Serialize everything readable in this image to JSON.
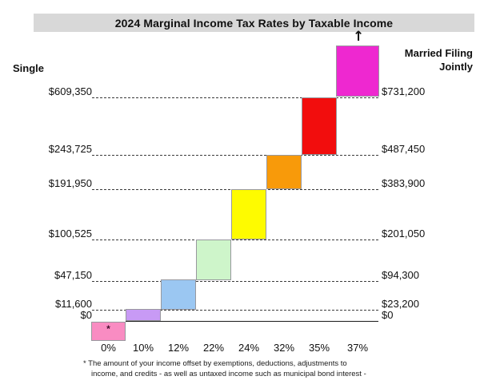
{
  "title": "2024 Marginal Income Tax Rates by Taxable Income",
  "left_header": "Single",
  "right_header": "Married Filing Jointly",
  "footnote": {
    "marker": "*",
    "line1": "The amount of your income offset by exemptions, deductions, adjustments to",
    "line2": "income, and credits - as well as untaxed income such as municipal bond interest -"
  },
  "open_ended_arrow_glyph": "↑",
  "chart_data": {
    "type": "bar",
    "subtype": "marginal-tax-bracket-staircase",
    "title": "2024 Marginal Income Tax Rates by Taxable Income",
    "x_tick_labels": [
      "0%",
      "10%",
      "12%",
      "22%",
      "24%",
      "32%",
      "35%",
      "37%"
    ],
    "left_axis_label": "Single",
    "right_axis_label": "Married Filing Jointly",
    "y_scale": "taxable income thresholds (non-linear step scale)",
    "grid": "horizontal dashed threshold lines, solid line at $0",
    "gridlines": [
      {
        "single": "$609,350",
        "married_joint": "$731,200",
        "single_value": 609350,
        "married_value": 731200,
        "style": "dashed"
      },
      {
        "single": "$243,725",
        "married_joint": "$487,450",
        "single_value": 243725,
        "married_value": 487450,
        "style": "dashed"
      },
      {
        "single": "$191,950",
        "married_joint": "$383,900",
        "single_value": 191950,
        "married_value": 383900,
        "style": "dashed"
      },
      {
        "single": "$100,525",
        "married_joint": "$201,050",
        "single_value": 100525,
        "married_value": 201050,
        "style": "dashed"
      },
      {
        "single": "$47,150",
        "married_joint": "$94,300",
        "single_value": 47150,
        "married_value": 94300,
        "style": "dashed"
      },
      {
        "single": "$11,600",
        "married_joint": "$23,200",
        "single_value": 11600,
        "married_value": 23200,
        "style": "dashed"
      },
      {
        "single": "$0",
        "married_joint": "$0",
        "single_value": 0,
        "married_value": 0,
        "style": "solid"
      }
    ],
    "brackets": [
      {
        "rate": "0%",
        "single_range": [
          null,
          0
        ],
        "married_range": [
          null,
          0
        ],
        "color": "#F98CC2",
        "note": "*"
      },
      {
        "rate": "10%",
        "single_range": [
          0,
          11600
        ],
        "married_range": [
          0,
          23200
        ],
        "color": "#C89AF5"
      },
      {
        "rate": "12%",
        "single_range": [
          11600,
          47150
        ],
        "married_range": [
          23200,
          94300
        ],
        "color": "#9BC7F2"
      },
      {
        "rate": "22%",
        "single_range": [
          47150,
          100525
        ],
        "married_range": [
          94300,
          201050
        ],
        "color": "#CEF5CA"
      },
      {
        "rate": "24%",
        "single_range": [
          100525,
          191950
        ],
        "married_range": [
          201050,
          383900
        ],
        "color": "#FEFB00"
      },
      {
        "rate": "32%",
        "single_range": [
          191950,
          243725
        ],
        "married_range": [
          383900,
          487450
        ],
        "color": "#F89A0A"
      },
      {
        "rate": "35%",
        "single_range": [
          243725,
          609350
        ],
        "married_range": [
          487450,
          731200
        ],
        "color": "#F20D0D"
      },
      {
        "rate": "37%",
        "single_range": [
          609350,
          null
        ],
        "married_range": [
          731200,
          null
        ],
        "color": "#EE28D0",
        "open_ended": true
      }
    ],
    "box_border_color": "#98989E",
    "title_bar_color": "#D8D8D8"
  }
}
